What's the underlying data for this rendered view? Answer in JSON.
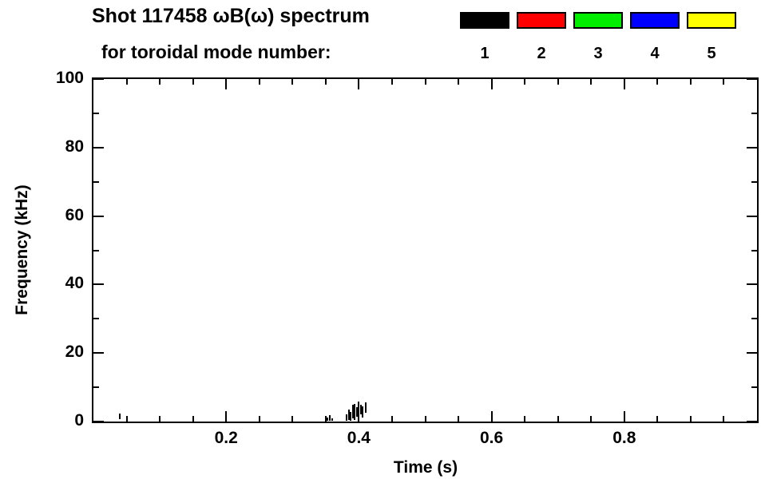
{
  "title": {
    "line1": "Shot 117458 ωB(ω) spectrum",
    "line2": "for toroidal mode number:"
  },
  "legend": {
    "items": [
      {
        "label": "1",
        "color": "#000000"
      },
      {
        "label": "2",
        "color": "#ff0000"
      },
      {
        "label": "3",
        "color": "#00ee00"
      },
      {
        "label": "4",
        "color": "#0000ff"
      },
      {
        "label": "5",
        "color": "#ffff00"
      }
    ]
  },
  "chart_data": {
    "type": "scatter",
    "title": "Shot 117458 ωB(ω) spectrum for toroidal mode number: 1 2 3 4 5",
    "xlabel": "Time (s)",
    "ylabel": "Frequency (kHz)",
    "xlim": [
      0,
      1.0
    ],
    "ylim": [
      0,
      100
    ],
    "x_major_ticks": [
      0.2,
      0.4,
      0.6,
      0.8
    ],
    "x_tick_labels": [
      "0.2",
      "0.4",
      "0.6",
      "0.8"
    ],
    "x_minor_step": 0.05,
    "y_major_ticks": [
      0,
      20,
      40,
      60,
      80,
      100
    ],
    "y_tick_labels": [
      "0",
      "20",
      "40",
      "60",
      "80",
      "100"
    ],
    "y_minor_step": 10,
    "grid": false,
    "legend_position": "top-right-above-plot",
    "series": [
      {
        "name": "toroidal mode n=1",
        "color": "#000000",
        "segments": [
          [
            0.04,
            0.8,
            2.3
          ],
          [
            0.352,
            0.2,
            1.2
          ],
          [
            0.356,
            0.2,
            1.8
          ],
          [
            0.36,
            0.2,
            1.0
          ],
          [
            0.381,
            0.3,
            2.2
          ],
          [
            0.385,
            0.5,
            3.5
          ],
          [
            0.388,
            0.2,
            2.8
          ],
          [
            0.391,
            1.0,
            4.8
          ],
          [
            0.394,
            0.5,
            5.2
          ],
          [
            0.397,
            1.5,
            4.2
          ],
          [
            0.4,
            0.5,
            5.8
          ],
          [
            0.403,
            2.0,
            5.0
          ],
          [
            0.406,
            1.2,
            4.5
          ],
          [
            0.41,
            2.5,
            5.5
          ]
        ]
      }
    ]
  }
}
